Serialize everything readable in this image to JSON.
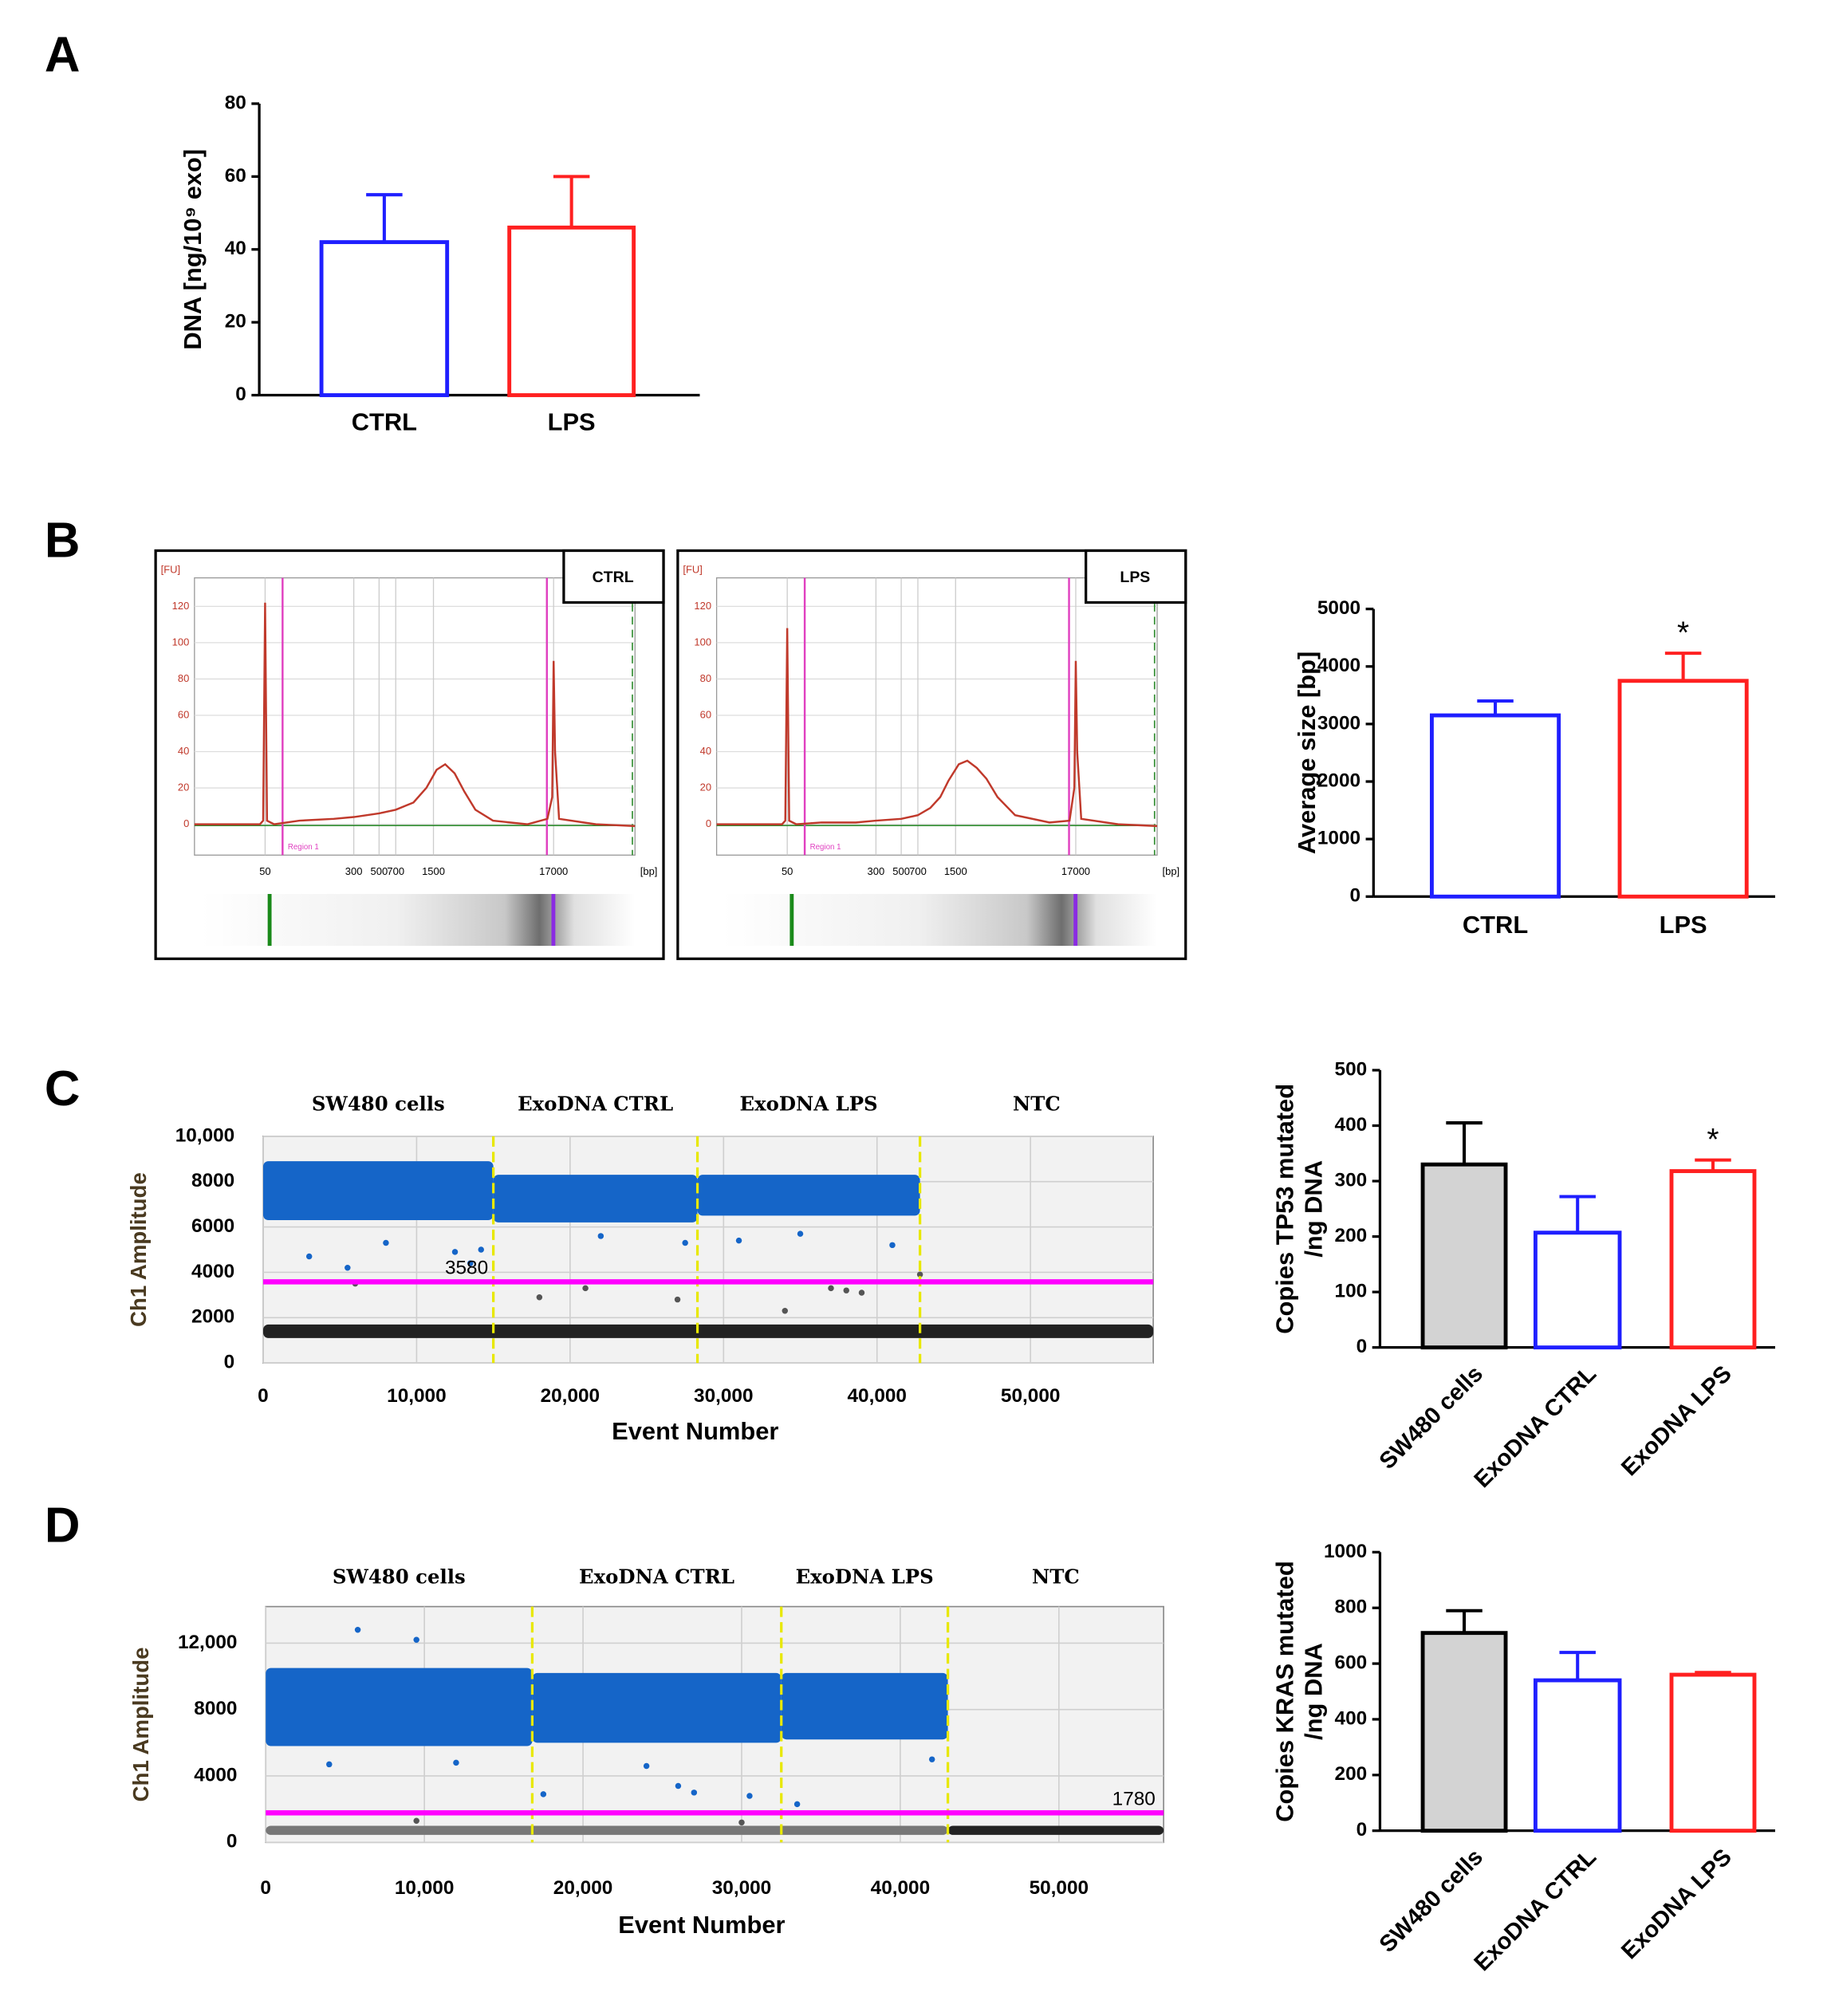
{
  "chart_data": [
    {
      "type": "bar",
      "panel": "A",
      "ylabel": [
        "DNA [ng/10⁹ exo]"
      ],
      "categories": [
        "CTRL",
        "LPS"
      ],
      "values": [
        42,
        46
      ],
      "errors": [
        13,
        14
      ],
      "colors": [
        "#1f1fff",
        "#ff2020"
      ],
      "fill_colors": [
        "#ffffff",
        "#ffffff"
      ],
      "ylim": [
        0,
        80
      ],
      "yticks": [
        0,
        20,
        40,
        60,
        80
      ]
    },
    {
      "type": "electropherogram",
      "panel": "B",
      "tag": "CTRL",
      "ylabel": "[FU]",
      "xlabel": "[bp]",
      "region_label": "Region 1",
      "xscale": "log",
      "xlim": [
        12,
        88000
      ],
      "ylim": [
        -17,
        130
      ],
      "xticks": [
        50,
        300,
        500,
        700,
        1500,
        17000
      ],
      "yticks": [
        0,
        20,
        40,
        60,
        80,
        100,
        120
      ],
      "color": "#c0392b",
      "x": [
        12,
        45,
        48,
        50,
        52,
        60,
        100,
        200,
        300,
        500,
        700,
        1000,
        1300,
        1600,
        1900,
        2300,
        2800,
        3500,
        5000,
        10000,
        15000,
        16500,
        17000,
        17500,
        19000,
        40000,
        88000
      ],
      "values": [
        0,
        0,
        2,
        122,
        2,
        0,
        2,
        3,
        4,
        6,
        8,
        12,
        20,
        30,
        33,
        28,
        18,
        8,
        2,
        0,
        3,
        15,
        90,
        40,
        3,
        0,
        -1
      ]
    },
    {
      "type": "electropherogram",
      "tag": "LPS",
      "ylabel": "[FU]",
      "xlabel": "[bp]",
      "region_label": "Region 1",
      "xscale": "log",
      "xlim": [
        12,
        88000
      ],
      "ylim": [
        -17,
        130
      ],
      "xticks": [
        50,
        300,
        500,
        700,
        1500,
        17000
      ],
      "yticks": [
        0,
        20,
        40,
        60,
        80,
        100,
        120
      ],
      "color": "#c0392b",
      "x": [
        12,
        45,
        48,
        50,
        52,
        60,
        100,
        200,
        300,
        500,
        700,
        900,
        1100,
        1300,
        1600,
        1900,
        2300,
        2800,
        3500,
        5000,
        10000,
        15000,
        16500,
        17000,
        17500,
        19000,
        40000,
        88000
      ],
      "values": [
        0,
        0,
        2,
        108,
        2,
        0,
        1,
        1,
        2,
        3,
        5,
        9,
        15,
        24,
        33,
        35,
        31,
        25,
        15,
        5,
        1,
        2,
        20,
        90,
        40,
        3,
        0,
        -1
      ]
    },
    {
      "type": "bar",
      "ylabel": [
        "Average size [bp]"
      ],
      "categories": [
        "CTRL",
        "LPS"
      ],
      "values": [
        3150,
        3750
      ],
      "errors": [
        250,
        480
      ],
      "colors": [
        "#1f1fff",
        "#ff2020"
      ],
      "fill_colors": [
        "#ffffff",
        "#ffffff"
      ],
      "ylim": [
        0,
        5000
      ],
      "yticks": [
        0,
        1000,
        2000,
        3000,
        4000,
        5000
      ],
      "annotations": [
        {
          "text": "*",
          "x": "LPS"
        }
      ]
    },
    {
      "type": "ddpcr",
      "panel": "C",
      "ylabel": "Ch1 Amplitude",
      "xlabel": "Event Number",
      "segments": [
        "SW480 cells",
        "ExoDNA CTRL",
        "ExoDNA LPS",
        "NTC"
      ],
      "dividers": [
        15000,
        28300,
        42800
      ],
      "xlim": [
        0,
        58000
      ],
      "xticks": [
        0,
        {
          "value": 10000,
          "label": "10,000"
        },
        {
          "value": 20000,
          "label": "20,000"
        },
        {
          "value": 30000,
          "label": "30,000"
        },
        {
          "value": 40000,
          "label": "40,000"
        },
        {
          "value": 50000,
          "label": "50,000"
        }
      ],
      "ylim": [
        0,
        10000
      ],
      "yticks": [
        0,
        2000,
        4000,
        6000,
        8000,
        {
          "value": 10000,
          "label": "10,000"
        }
      ],
      "threshold": 3580,
      "threshold_label": "3580",
      "threshold_color": "#ff00ff",
      "clusters": [
        {
          "x": [
            0,
            15000
          ],
          "y": [
            6300,
            8900
          ],
          "color": "#1565c8"
        },
        {
          "x": [
            15000,
            28300
          ],
          "y": [
            6200,
            8300
          ],
          "color": "#1565c8"
        },
        {
          "x": [
            28300,
            42800
          ],
          "y": [
            6500,
            8300
          ],
          "color": "#1565c8"
        },
        {
          "x": [
            0,
            58000
          ],
          "y": [
            1100,
            1700
          ],
          "color": "#222222"
        }
      ],
      "points": [
        {
          "color": "#1565c8",
          "x": [
            3000,
            5500,
            8000,
            12500,
            13500,
            14200,
            22000,
            27500,
            31000,
            35000,
            41000
          ],
          "y": [
            4700,
            4200,
            5300,
            4900,
            4400,
            5000,
            5600,
            5300,
            5400,
            5700,
            5200
          ]
        },
        {
          "color": "#555555",
          "x": [
            6000,
            18000,
            21000,
            27000,
            34000,
            37000,
            38000,
            39000,
            42800
          ],
          "y": [
            3500,
            2900,
            3300,
            2800,
            2300,
            3300,
            3200,
            3100,
            3900
          ]
        }
      ]
    },
    {
      "type": "bar",
      "ylabel": [
        "Copies TP53 mutated",
        "/ng DNA"
      ],
      "categories": [
        "SW480 cells",
        "ExoDNA CTRL",
        "ExoDNA LPS"
      ],
      "values": [
        330,
        207,
        318
      ],
      "errors": [
        75,
        65,
        20
      ],
      "colors": [
        "#000000",
        "#1f1fff",
        "#ff2020"
      ],
      "fill_colors": [
        "#d3d3d3",
        "#ffffff",
        "#ffffff"
      ],
      "ylim": [
        0,
        500
      ],
      "yticks": [
        0,
        100,
        200,
        300,
        400,
        500
      ],
      "annotations": [
        {
          "text": "*",
          "x": "ExoDNA LPS"
        }
      ]
    },
    {
      "type": "ddpcr",
      "panel": "D",
      "ylabel": "Ch1 Amplitude",
      "xlabel": "Event Number",
      "segments": [
        "SW480 cells",
        "ExoDNA CTRL",
        "ExoDNA LPS",
        "NTC"
      ],
      "dividers": [
        16800,
        32500,
        43000
      ],
      "xlim": [
        0,
        56600
      ],
      "xticks": [
        0,
        {
          "value": 10000,
          "label": "10,000"
        },
        {
          "value": 20000,
          "label": "20,000"
        },
        {
          "value": 30000,
          "label": "30,000"
        },
        {
          "value": 40000,
          "label": "40,000"
        },
        {
          "value": 50000,
          "label": "50,000"
        }
      ],
      "ylim": [
        0,
        14200
      ],
      "yticks": [
        0,
        4000,
        8000,
        {
          "value": 12000,
          "label": "12,000"
        }
      ],
      "threshold": 1780,
      "threshold_label": "1780",
      "threshold_color": "#ff00ff",
      "clusters": [
        {
          "x": [
            0,
            16800
          ],
          "y": [
            5800,
            10500
          ],
          "color": "#1565c8"
        },
        {
          "x": [
            16800,
            32500
          ],
          "y": [
            6000,
            10200
          ],
          "color": "#1565c8"
        },
        {
          "x": [
            32500,
            43000
          ],
          "y": [
            6200,
            10200
          ],
          "color": "#1565c8"
        },
        {
          "x": [
            0,
            43000
          ],
          "y": [
            450,
            1000
          ],
          "color": "#777777"
        },
        {
          "x": [
            43000,
            56600
          ],
          "y": [
            450,
            1000
          ],
          "color": "#222222"
        }
      ],
      "points": [
        {
          "color": "#1565c8",
          "x": [
            5800,
            9500,
            4000,
            12000,
            17500,
            24000,
            26000,
            27000,
            30500,
            33500,
            42000
          ],
          "y": [
            12800,
            12200,
            4700,
            4800,
            2900,
            4600,
            3400,
            3000,
            2800,
            2300,
            5000
          ]
        },
        {
          "color": "#555555",
          "x": [
            9500,
            30000
          ],
          "y": [
            1300,
            1200
          ]
        }
      ]
    },
    {
      "type": "bar",
      "ylabel": [
        "Copies KRAS mutated",
        "/ng DNA"
      ],
      "categories": [
        "SW480 cells",
        "ExoDNA CTRL",
        "ExoDNA LPS"
      ],
      "values": [
        710,
        540,
        560
      ],
      "errors": [
        80,
        100,
        8
      ],
      "colors": [
        "#000000",
        "#1f1fff",
        "#ff2020"
      ],
      "fill_colors": [
        "#d3d3d3",
        "#ffffff",
        "#ffffff"
      ],
      "ylim": [
        0,
        1000
      ],
      "yticks": [
        0,
        200,
        400,
        600,
        800,
        1000
      ]
    }
  ]
}
